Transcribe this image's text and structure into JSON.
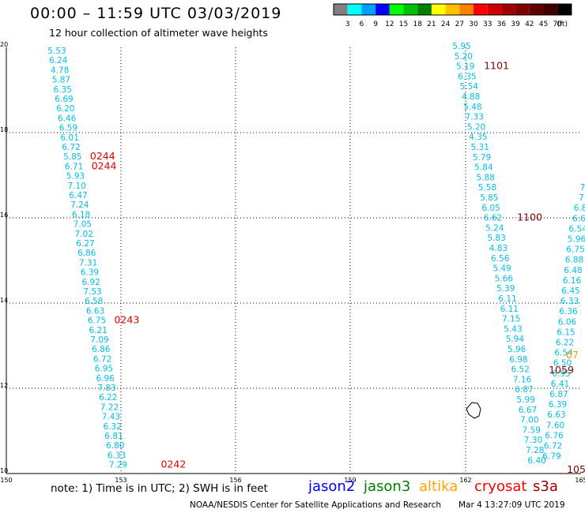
{
  "header": {
    "title": "00:00 – 11:59 UTC 03/03/2019",
    "subtitle": "12 hour collection of altimeter wave heights"
  },
  "legend": {
    "colors": [
      "#808080",
      "#00ffff",
      "#00a0ff",
      "#0000ff",
      "#00ff00",
      "#00c000",
      "#008000",
      "#ffff00",
      "#ffc000",
      "#ff8000",
      "#ff0000",
      "#d00000",
      "#a00000",
      "#800000",
      "#600000",
      "#400000",
      "#000000"
    ],
    "labels": [
      "3",
      "6",
      "9",
      "12",
      "15",
      "18",
      "21",
      "24",
      "27",
      "30",
      "33",
      "36",
      "39",
      "42",
      "45",
      "70",
      "(ft)"
    ]
  },
  "axes": {
    "x_ticks": [
      "150",
      "153",
      "156",
      "159",
      "162",
      "165"
    ],
    "y_ticks": [
      "20",
      "18",
      "16",
      "14",
      "12",
      "10"
    ]
  },
  "tracks": [
    {
      "name": "track-west",
      "values": [
        "5.53",
        "6.24",
        "4.78",
        "5.87",
        "6.35",
        "6.69",
        "6.20",
        "6.46",
        "6.59",
        "6.01",
        "6.72",
        "5.85",
        "6.71",
        "5.93",
        "7.10",
        "6.47",
        "7.24",
        "6.18",
        "7.05",
        "7.02",
        "6.27",
        "6.86",
        "7.31",
        "6.39",
        "6.92",
        "7.53",
        "6.58",
        "6.63",
        "6.75",
        "6.21",
        "7.09",
        "6.86",
        "6.72",
        "6.95",
        "6.96",
        "7.83",
        "6.22",
        "7.22",
        "7.43",
        "6.32",
        "6.81",
        "6.80",
        "6.33",
        "7.29"
      ],
      "times": [
        {
          "label": "0244",
          "index": 11
        },
        {
          "label": "0244",
          "index": 12
        },
        {
          "label": "0243",
          "index": 28
        },
        {
          "label": "0242",
          "index": 43
        }
      ]
    },
    {
      "name": "track-east-a",
      "values": [
        "5.95",
        "5.20",
        "5.19",
        "6.35",
        "5.54",
        "4.88",
        "5.48",
        "7.33",
        "5.20",
        "4.35",
        "5.31",
        "5.79",
        "5.84",
        "5.88",
        "5.58",
        "5.85",
        "6.05",
        "6.62",
        "5.24",
        "5.83",
        "4.83",
        "6.56",
        "5.49",
        "5.66",
        "5.39",
        "6.11",
        "6.11",
        "7.15",
        "5.43",
        "5.94",
        "5.96",
        "6.98",
        "6.52",
        "7.16",
        "6.87",
        "5.99",
        "6.67",
        "7.00",
        "7.59",
        "7.30",
        "7.28",
        "6.40"
      ],
      "times": [
        {
          "label": "1101",
          "index": 2
        },
        {
          "label": "1100",
          "index": 17
        }
      ]
    },
    {
      "name": "track-east-b",
      "values": [
        "7",
        "7",
        "6.8",
        "6.6",
        "6.54",
        "5.96",
        "6.75",
        "6.88",
        "6.48",
        "6.16",
        "6.45",
        "6.33",
        "6.36",
        "6.06",
        "6.15",
        "6.22",
        "6.54",
        "6.50",
        "6.95",
        "6.41",
        "6.87",
        "6.39",
        "6.63",
        "7.60",
        "6.76",
        "6.72",
        "6.79"
      ],
      "times": [
        {
          "label": "1059",
          "index": 16
        },
        {
          "label": "105",
          "index": 26
        }
      ]
    },
    {
      "name": "track-altika",
      "values": [],
      "times": [
        {
          "label": "07",
          "index": 0
        }
      ]
    }
  ],
  "satellites": {
    "jason2": {
      "label": "jason2",
      "color": "#0000ff"
    },
    "jason3": {
      "label": "jason3",
      "color": "#008000"
    },
    "altika": {
      "label": "altika",
      "color": "#ffa500"
    },
    "cryosat": {
      "label": "cryosat",
      "color": "#ff0000"
    },
    "s3a": {
      "label": "s3a",
      "color": "#a00000"
    }
  },
  "note": "note:  1) Time is in UTC;  2) SWH is in feet",
  "footer": {
    "center": "NOAA/NESDIS Center for Satellite Applications and Research",
    "timestamp": "Mar  4 13:27:09 UTC 2019"
  },
  "colors": {
    "swh_text": "#00bfe6",
    "time_red": "#e00000",
    "time_darkred": "#800000",
    "time_orange": "#ff9900"
  }
}
